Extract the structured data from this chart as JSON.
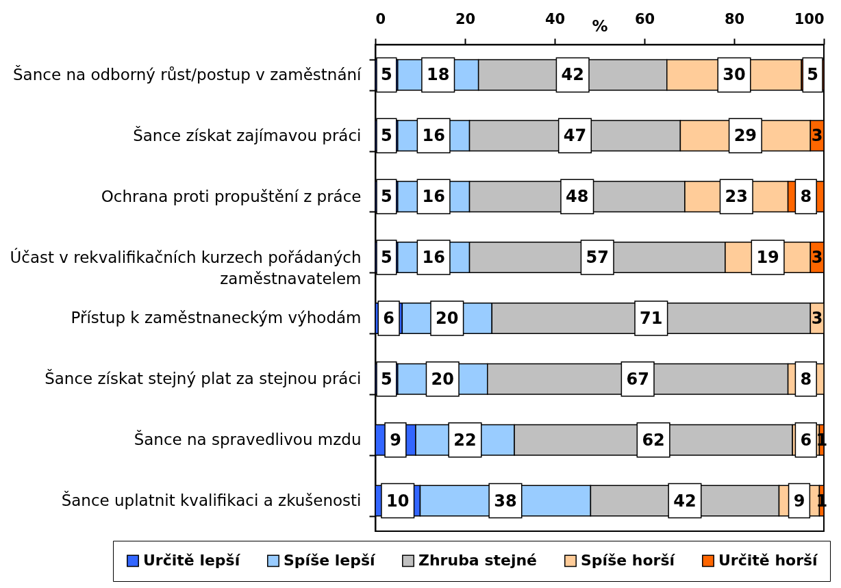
{
  "chart_data": {
    "type": "bar",
    "orientation": "horizontal",
    "stacked": true,
    "categories": [
      "Šance na odborný růst/postup v zaměstnání",
      "Šance získat zajímavou práci",
      "Ochrana proti propuštění z práce",
      "Účast v rekvalifikačních kurzech pořádaných\nzaměstnavatelem",
      "Přístup k zaměstnaneckým výhodám",
      "Šance získat stejný plat za stejnou práci",
      "Šance na spravedlivou mzdu",
      "Šance uplatnit kvalifikaci a zkušenosti"
    ],
    "series": [
      {
        "name": "Určitě lepší",
        "color": "#3366ff",
        "values": [
          5,
          5,
          5,
          5,
          6,
          5,
          9,
          10
        ]
      },
      {
        "name": "Spíše lepší",
        "color": "#99ccff",
        "values": [
          18,
          16,
          16,
          16,
          20,
          20,
          22,
          38
        ]
      },
      {
        "name": "Zhruba stejné",
        "color": "#c0c0c0",
        "values": [
          42,
          47,
          48,
          57,
          71,
          67,
          62,
          42
        ]
      },
      {
        "name": "Spíše horší",
        "color": "#ffcc99",
        "values": [
          30,
          29,
          23,
          19,
          3,
          8,
          6,
          9
        ]
      },
      {
        "name": "Určitě horší",
        "color": "#ff6600",
        "values": [
          5,
          3,
          8,
          3,
          null,
          null,
          1,
          1
        ]
      }
    ],
    "xlabel": "%",
    "xlim": [
      0,
      100
    ],
    "xticks": [
      0,
      20,
      40,
      60,
      80,
      100
    ],
    "data_labels": true,
    "legend": "bottom"
  }
}
